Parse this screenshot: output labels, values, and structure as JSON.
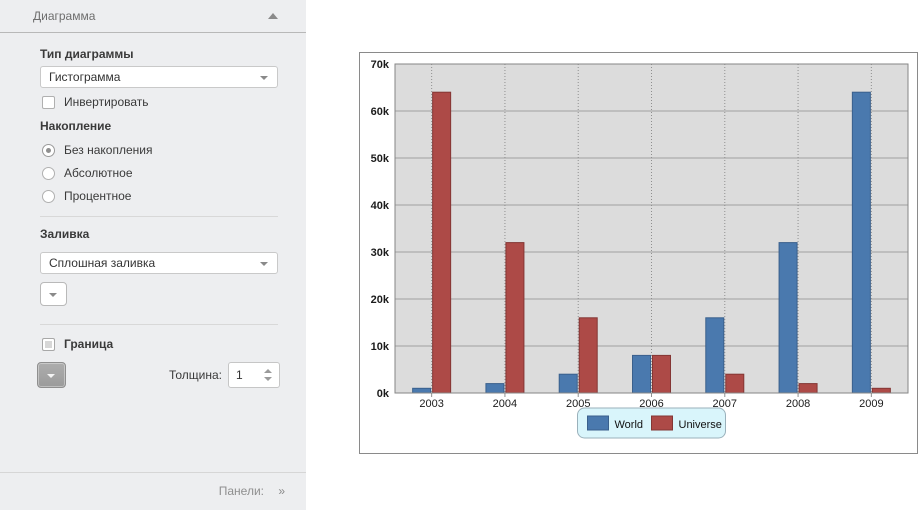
{
  "sidebar": {
    "title": "Диаграмма",
    "type_section": {
      "label": "Тип диаграммы",
      "value": "Гистограмма"
    },
    "invert_checkbox": {
      "label": "Инвертировать",
      "checked": false
    },
    "stacking": {
      "label": "Накопление",
      "options": [
        {
          "label": "Без накопления",
          "selected": true
        },
        {
          "label": "Абсолютное",
          "selected": false
        },
        {
          "label": "Процентное",
          "selected": false
        }
      ]
    },
    "fill": {
      "label": "Заливка",
      "value": "Сплошная заливка"
    },
    "border": {
      "label": "Граница",
      "checked": false,
      "thickness_label": "Толщина:",
      "thickness_value": "1"
    },
    "footer": {
      "label": "Панели:",
      "chevrons": "»"
    }
  },
  "chart_data": {
    "type": "bar",
    "title": "",
    "xlabel": "",
    "ylabel": "",
    "categories": [
      "2003",
      "2004",
      "2005",
      "2006",
      "2007",
      "2008",
      "2009"
    ],
    "series": [
      {
        "name": "World",
        "color": "#4a79ae",
        "border_color": "#3a608c",
        "values": [
          1000,
          2000,
          4000,
          8000,
          16000,
          32000,
          64000
        ]
      },
      {
        "name": "Universe",
        "color": "#ad4a47",
        "border_color": "#843634",
        "values": [
          64000,
          32000,
          16000,
          8000,
          4000,
          2000,
          1000
        ]
      }
    ],
    "ylim": [
      0,
      70000
    ],
    "ytick_step": 10000,
    "ytick_labels": [
      "0k",
      "10k",
      "20k",
      "30k",
      "40k",
      "50k",
      "60k",
      "70k"
    ],
    "grid": true,
    "legend_position": "bottom",
    "plot_bg": "#dcdcdc",
    "grid_color": "#a0a0a0",
    "vgrid_color": "#8f8f8f",
    "axis_color": "#868686",
    "legend_bg": "#d9f5fb",
    "legend_border": "#9ab1bb"
  }
}
